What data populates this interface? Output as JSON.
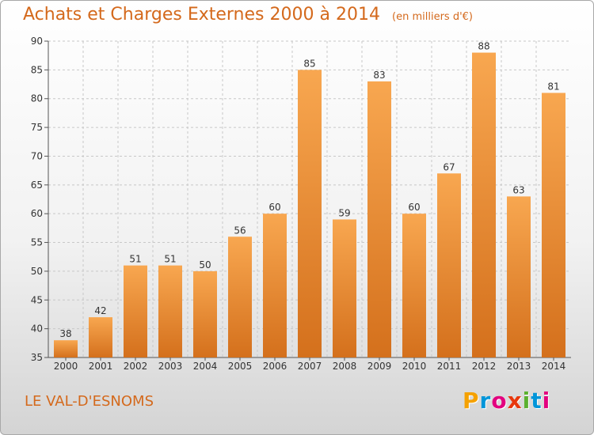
{
  "header": {
    "title": "Achats et Charges Externes 2000 à 2014",
    "subtitle": "(en milliers d'€)"
  },
  "footer": {
    "commune": "LE VAL-D'ESNOMS",
    "brand": "Proxiti",
    "brand_letters": [
      {
        "char": "P",
        "color": "#f5a100"
      },
      {
        "char": "r",
        "color": "#0095d9"
      },
      {
        "char": "o",
        "color": "#e3007f"
      },
      {
        "char": "x",
        "color": "#e8380d"
      },
      {
        "char": "i",
        "color": "#5bb12f"
      },
      {
        "char": "t",
        "color": "#0095d9"
      },
      {
        "char": "i",
        "color": "#e3007f"
      }
    ]
  },
  "colors": {
    "bar_light": "#f8a750",
    "bar_dark": "#d4701c",
    "title": "#d4691c",
    "grid": "#c8c8c8"
  },
  "chart_data": {
    "type": "bar",
    "title": "Achats et Charges Externes 2000 à 2014",
    "subtitle": "(en milliers d'€)",
    "categories": [
      "2000",
      "2001",
      "2002",
      "2003",
      "2004",
      "2005",
      "2006",
      "2007",
      "2008",
      "2009",
      "2010",
      "2011",
      "2012",
      "2013",
      "2014"
    ],
    "values": [
      38,
      42,
      51,
      51,
      50,
      56,
      60,
      85,
      59,
      83,
      60,
      67,
      88,
      63,
      81
    ],
    "ylim": [
      35,
      90
    ],
    "yticks": [
      35,
      40,
      45,
      50,
      55,
      60,
      65,
      70,
      75,
      80,
      85,
      90
    ],
    "grid": true,
    "data_labels": true
  }
}
